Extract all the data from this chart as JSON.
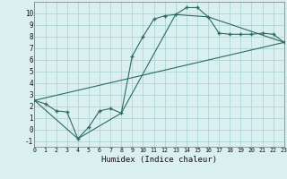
{
  "xlabel": "Humidex (Indice chaleur)",
  "background_color": "#daf0f0",
  "grid_color": "#aed4d4",
  "line_color": "#2a6b62",
  "curve1_x": [
    0,
    1,
    2,
    3,
    4,
    5,
    6,
    7,
    8,
    9,
    10,
    11,
    12,
    13,
    14,
    15,
    16,
    17,
    18,
    19,
    20,
    21,
    22,
    23
  ],
  "curve1_y": [
    2.5,
    2.2,
    1.6,
    1.5,
    -0.8,
    0.2,
    1.6,
    1.8,
    1.4,
    6.3,
    8.0,
    9.5,
    9.8,
    9.9,
    10.5,
    10.5,
    9.7,
    8.3,
    8.2,
    8.2,
    8.2,
    8.3,
    8.2,
    7.5
  ],
  "curve2_x": [
    0,
    23
  ],
  "curve2_y": [
    2.5,
    7.5
  ],
  "curve3_x": [
    0,
    4,
    8,
    13,
    16,
    23
  ],
  "curve3_y": [
    2.5,
    -0.8,
    1.4,
    9.9,
    9.7,
    7.5
  ],
  "xlim": [
    0,
    23
  ],
  "ylim": [
    -1.5,
    11.0
  ],
  "xticks": [
    0,
    1,
    2,
    3,
    4,
    5,
    6,
    7,
    8,
    9,
    10,
    11,
    12,
    13,
    14,
    15,
    16,
    17,
    18,
    19,
    20,
    21,
    22,
    23
  ],
  "yticks": [
    -1,
    0,
    1,
    2,
    3,
    4,
    5,
    6,
    7,
    8,
    9,
    10
  ]
}
